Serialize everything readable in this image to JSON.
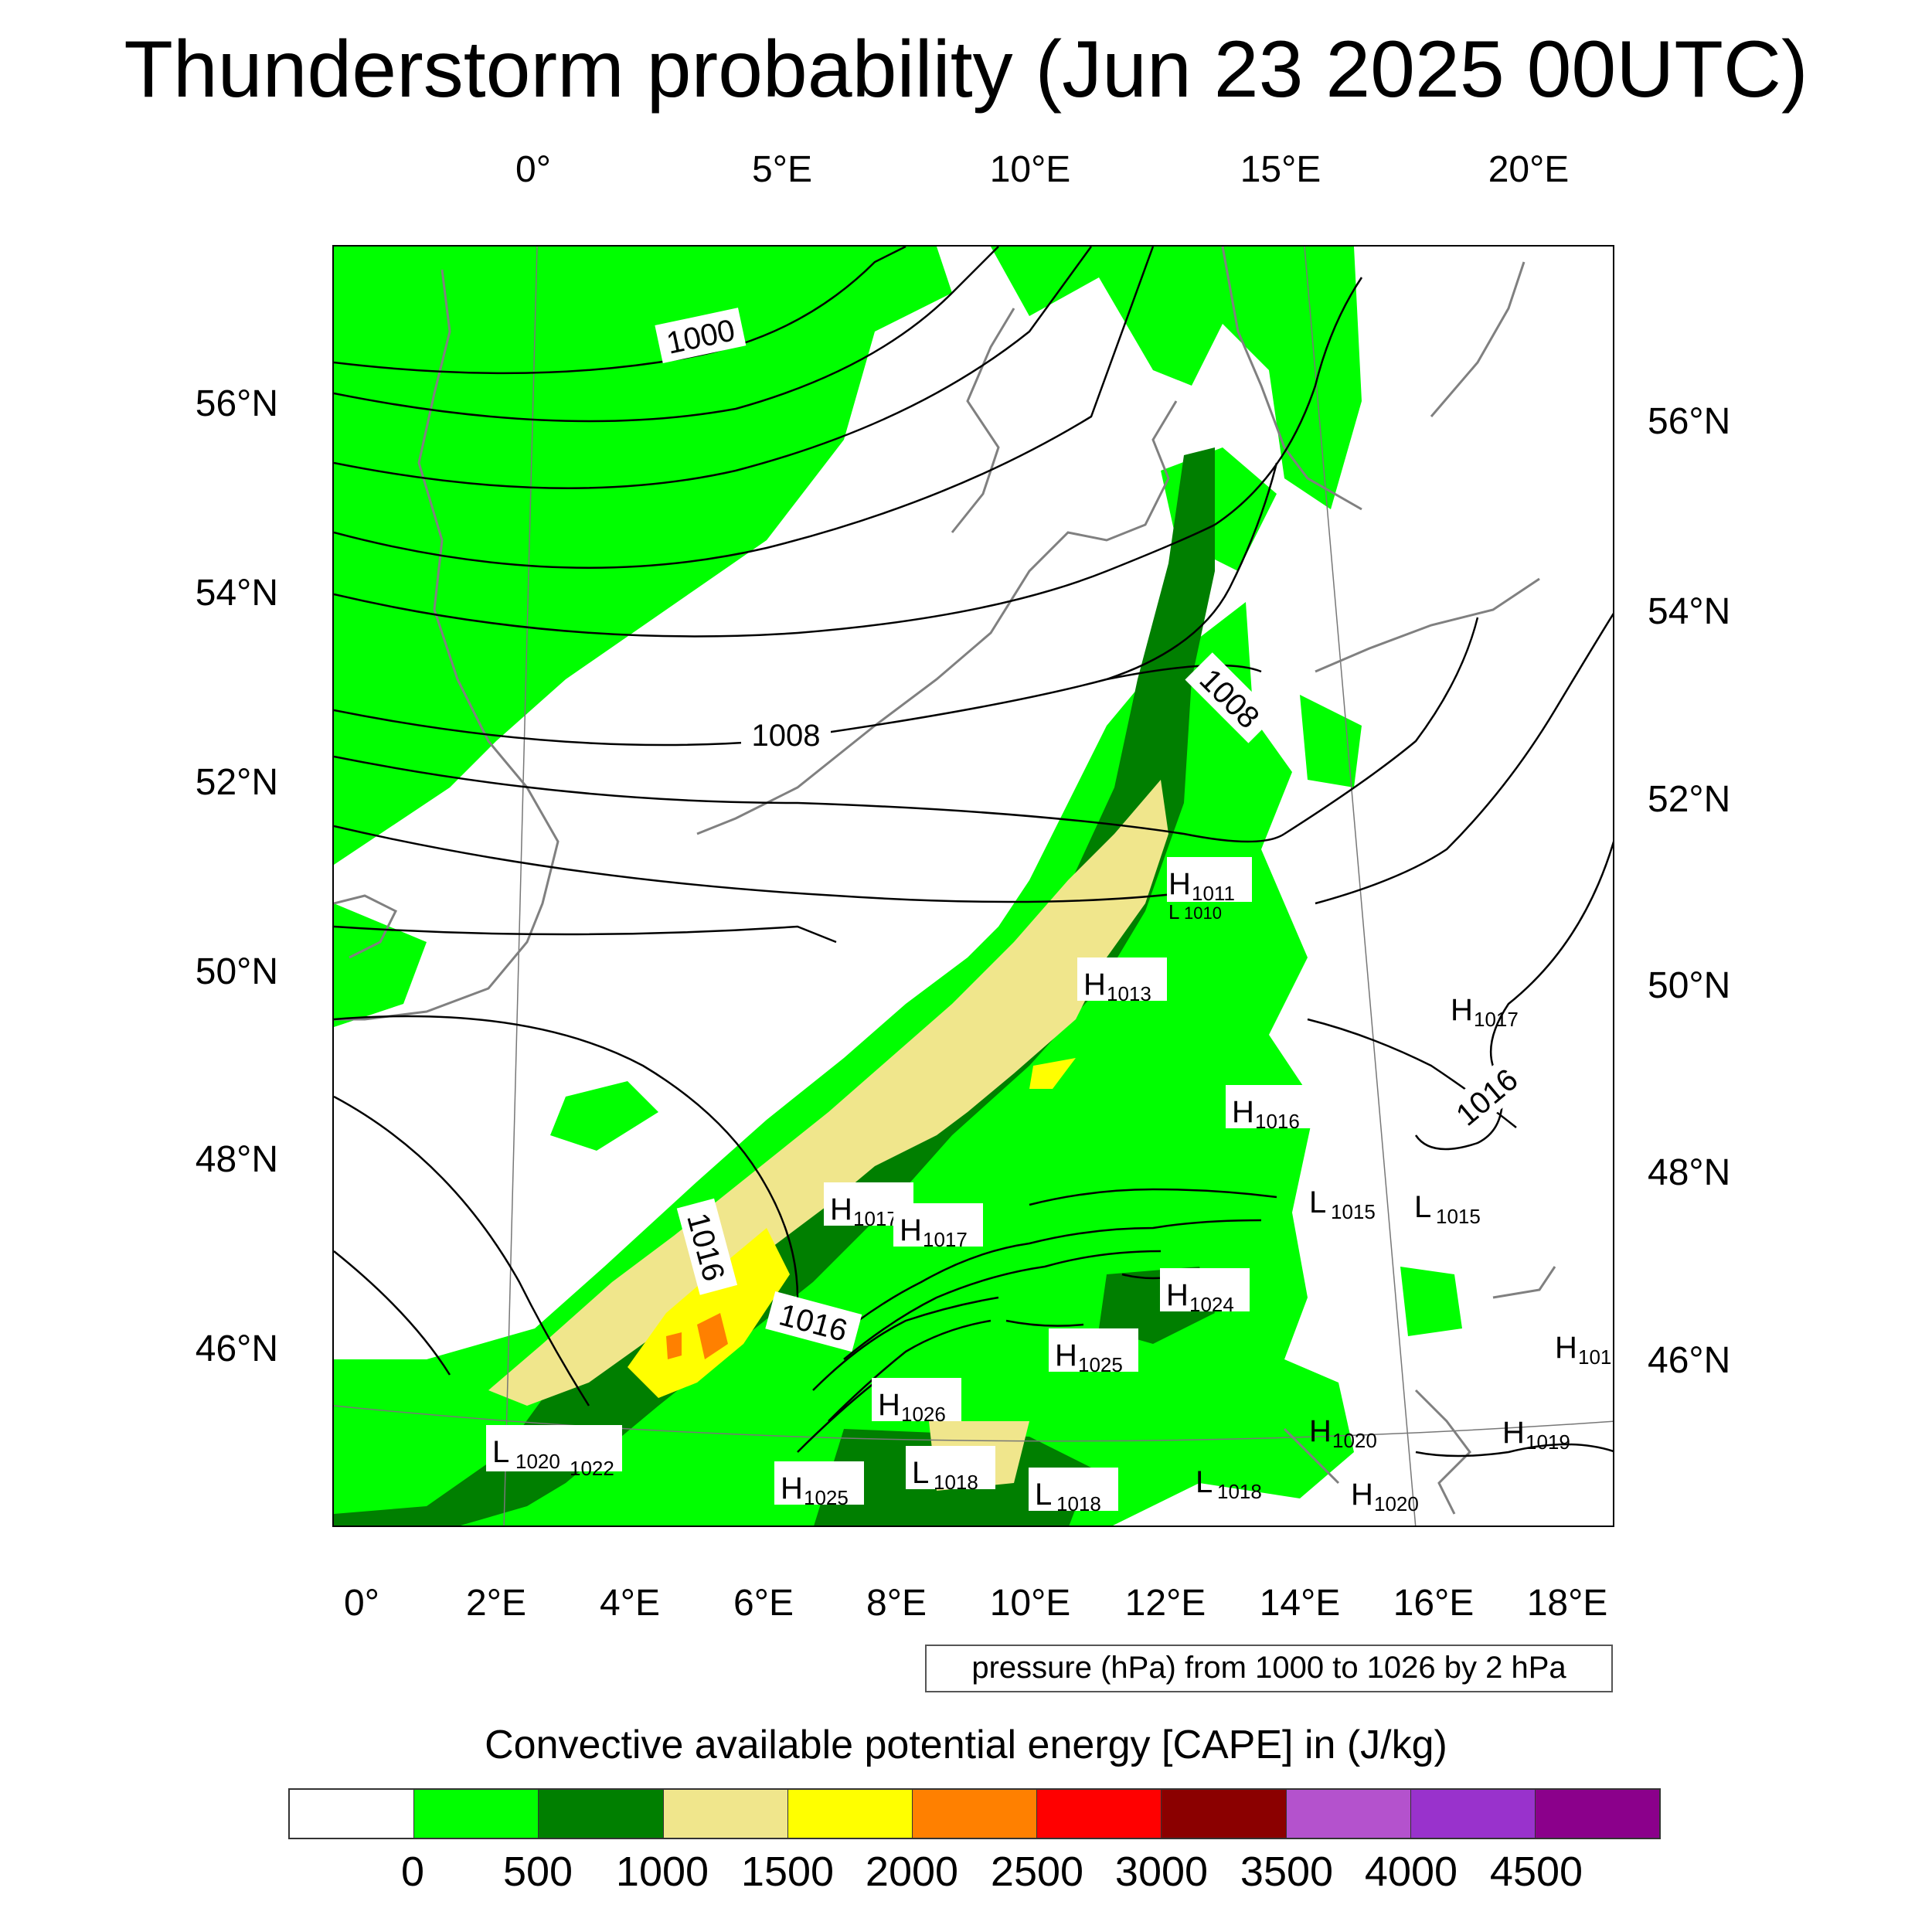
{
  "title": "Thunderstorm probability (Jun 23 2025 00UTC)",
  "top_ticks": [
    "0°",
    "5°E",
    "10°E",
    "15°E",
    "20°E"
  ],
  "bottom_ticks": [
    "0°",
    "2°E",
    "4°E",
    "6°E",
    "8°E",
    "10°E",
    "12°E",
    "14°E",
    "16°E",
    "18°E"
  ],
  "left_ticks": [
    "56°N",
    "54°N",
    "52°N",
    "50°N",
    "48°N",
    "46°N"
  ],
  "right_ticks": [
    "56°N",
    "54°N",
    "52°N",
    "50°N",
    "48°N",
    "46°N"
  ],
  "isobar_labels": [
    "1000",
    "1008",
    "1008",
    "1016",
    "1016",
    "1016"
  ],
  "pressure_centers": [
    {
      "letter": "H",
      "value": "1011"
    },
    {
      "letter": "L",
      "value": "1010"
    },
    {
      "letter": "H",
      "value": "1013"
    },
    {
      "letter": "H",
      "value": "1017"
    },
    {
      "letter": "H",
      "value": "1016"
    },
    {
      "letter": "H",
      "value": "1017"
    },
    {
      "letter": "H",
      "value": "1017"
    },
    {
      "letter": "L",
      "value": "1015"
    },
    {
      "letter": "L",
      "value": "1015"
    },
    {
      "letter": "H",
      "value": "1024"
    },
    {
      "letter": "H",
      "value": "1025"
    },
    {
      "letter": "H",
      "value": "1026"
    },
    {
      "letter": "H",
      "value": "101"
    },
    {
      "letter": "L",
      "value": "1020"
    },
    {
      "letter": "",
      "value": "1022"
    },
    {
      "letter": "H",
      "value": "1020"
    },
    {
      "letter": "H",
      "value": "1019"
    },
    {
      "letter": "L",
      "value": "1018"
    },
    {
      "letter": "L",
      "value": "1018"
    },
    {
      "letter": "L",
      "value": "1018"
    },
    {
      "letter": "H",
      "value": "1025"
    },
    {
      "letter": "H",
      "value": "1020"
    }
  ],
  "contour_info": "pressure (hPa) from 1000 to 1026 by 2 hPa",
  "colorbar": {
    "title": "Convective available potential energy [CAPE] in (J/kg)",
    "colors": [
      "#ffffff",
      "#00ff00",
      "#007f00",
      "#f0e68c",
      "#ffff00",
      "#ff8000",
      "#ff0000",
      "#8b0000",
      "#b452cd",
      "#9932cc",
      "#8b008b"
    ],
    "labels": [
      "0",
      "500",
      "1000",
      "1500",
      "2000",
      "2500",
      "3000",
      "3500",
      "4000",
      "4500"
    ]
  },
  "cape_colors": {
    "green": "#00ff00",
    "dark_green": "#007f00",
    "khaki": "#f0e68c",
    "yellow": "#ffff00",
    "orange": "#ff8000",
    "coast": "#808080"
  }
}
